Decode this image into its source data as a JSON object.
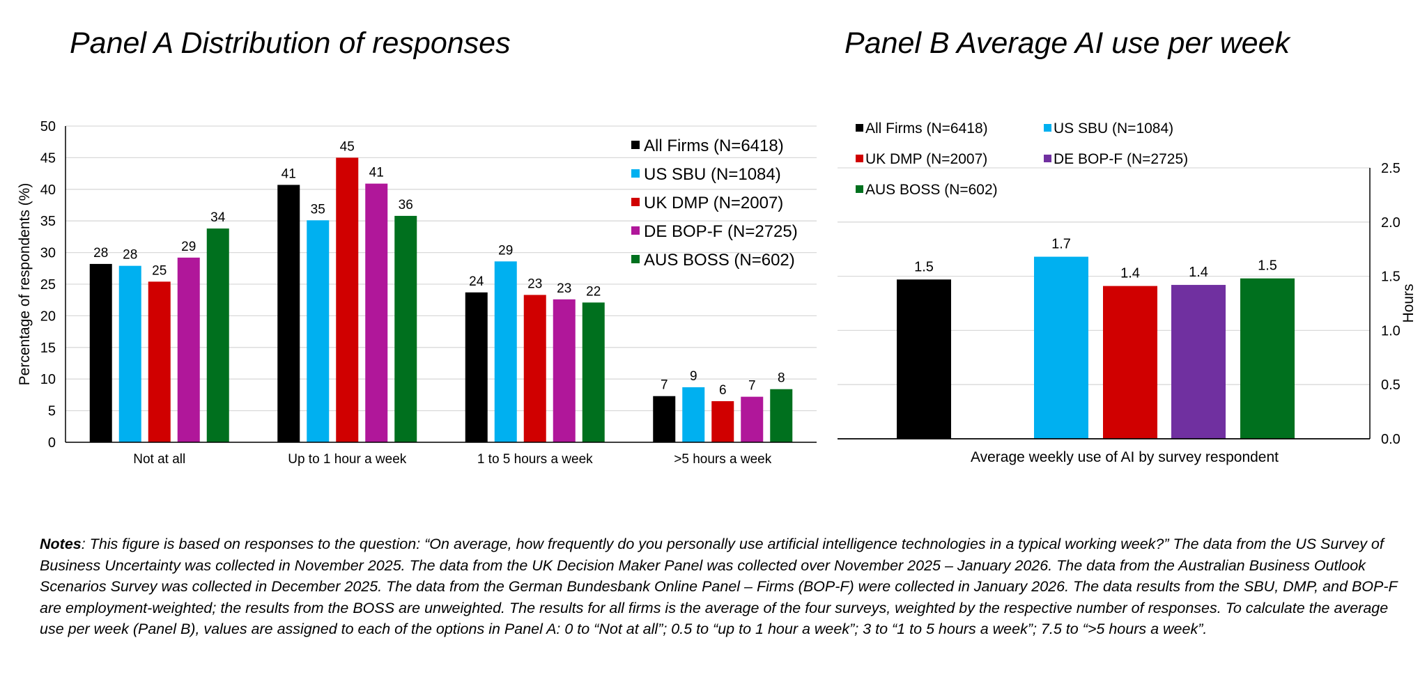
{
  "chart_data": [
    {
      "type": "bar",
      "title": "Panel A Distribution of responses",
      "ylabel": "Percentage of respondents (%)",
      "xlabel": "",
      "ylim": [
        0,
        50
      ],
      "yticks": [
        0,
        5,
        10,
        15,
        20,
        25,
        30,
        35,
        40,
        45,
        50
      ],
      "grid": true,
      "legend_position": "top-right",
      "categories": [
        "Not at all",
        "Up to 1 hour a week",
        "1 to 5 hours a week",
        ">5 hours a week"
      ],
      "series": [
        {
          "name": "All Firms (N=6418)",
          "color": "#000000",
          "values": [
            28.2,
            40.7,
            23.7,
            7.3
          ],
          "labels": [
            "28",
            "41",
            "24",
            "7"
          ]
        },
        {
          "name": "US SBU (N=1084)",
          "color": "#00B0F0",
          "values": [
            27.9,
            35.1,
            28.6,
            8.7
          ],
          "labels": [
            "28",
            "35",
            "29",
            "9"
          ]
        },
        {
          "name": "UK DMP (N=2007)",
          "color": "#D00000",
          "values": [
            25.4,
            45.0,
            23.3,
            6.5
          ],
          "labels": [
            "25",
            "45",
            "23",
            "6"
          ]
        },
        {
          "name": "DE BOP-F (N=2725)",
          "color": "#B0179A",
          "values": [
            29.2,
            40.9,
            22.6,
            7.2
          ],
          "labels": [
            "29",
            "41",
            "23",
            "7"
          ]
        },
        {
          "name": "AUS BOSS (N=602)",
          "color": "#00701E",
          "values": [
            33.8,
            35.8,
            22.1,
            8.4
          ],
          "labels": [
            "34",
            "36",
            "22",
            "8"
          ]
        }
      ]
    },
    {
      "type": "bar",
      "title": "Panel B Average AI use per week",
      "ylabel": "Hours",
      "xlabel": "Average weekly use of AI by survey respondent",
      "ylim": [
        0,
        2.5
      ],
      "yticks": [
        "0.0",
        "0.5",
        "1.0",
        "1.5",
        "2.0",
        "2.5"
      ],
      "yaxis_side": "right",
      "grid": true,
      "legend_position": "top-left",
      "series": [
        {
          "name": "All Firms (N=6418)",
          "color": "#000000",
          "value": 1.47,
          "label": "1.5"
        },
        {
          "name": "US SBU (N=1084)",
          "color": "#00B0F0",
          "value": 1.68,
          "label": "1.7"
        },
        {
          "name": "UK DMP (N=2007)",
          "color": "#D00000",
          "value": 1.41,
          "label": "1.4"
        },
        {
          "name": "DE BOP-F (N=2725)",
          "color": "#7030A0",
          "value": 1.42,
          "label": "1.4"
        },
        {
          "name": "AUS BOSS (N=602)",
          "color": "#00701E",
          "value": 1.48,
          "label": "1.5"
        }
      ]
    }
  ],
  "notes": {
    "label": "Notes",
    "text": ": This figure is based on responses to the question: “On average, how frequently do you personally use artificial intelligence technologies in a typical working week?” The data from the US Survey of Business Uncertainty was collected in November 2025. The data from the UK Decision Maker Panel was collected over November 2025 – January 2026. The data from the Australian Business Outlook Scenarios Survey was collected in December 2025. The data from the German Bundesbank Online Panel – Firms (BOP-F) were collected in January 2026. The data results from the SBU, DMP, and BOP-F are employment-weighted; the results from the BOSS are unweighted. The results for all firms is the average of the four surveys, weighted by the respective number of responses. To calculate the average use per week (Panel B), values are assigned to each of the options in Panel A: 0 to “Not at all”; 0.5 to “up to 1 hour a week”; 3 to “1 to 5 hours a week”; 7.5 to “>5 hours a week”."
  }
}
